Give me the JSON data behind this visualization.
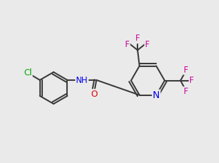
{
  "background_color": "#eaeaea",
  "bond_color": "#3a3a3a",
  "bond_width": 1.5,
  "atom_colors": {
    "C": "#3a3a3a",
    "N": "#0000ee",
    "O": "#dd0000",
    "F": "#cc0099",
    "Cl": "#00aa00",
    "H": "#3a3a3a"
  },
  "font_size": 8.5
}
